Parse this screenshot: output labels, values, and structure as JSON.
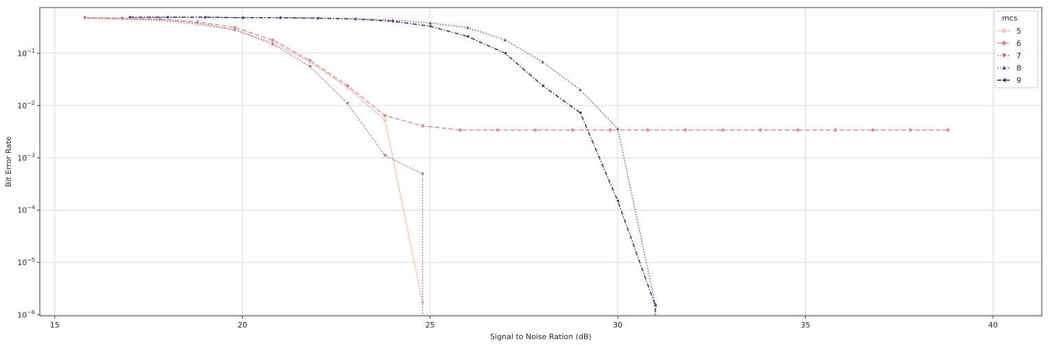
{
  "chart_data": {
    "type": "line",
    "title": "",
    "xlabel": "Signal to Noise Ration (dB)",
    "ylabel": "Bit Error Rate",
    "xlim": [
      14.6,
      41.3
    ],
    "ylim": [
      9.5e-07,
      0.75
    ],
    "yscale": "log",
    "grid": true,
    "x_ticks": [
      15,
      20,
      25,
      30,
      35,
      40
    ],
    "x_tick_labels": [
      "15",
      "20",
      "25",
      "30",
      "35",
      "40"
    ],
    "y_ticks": [
      1e-06,
      1e-05,
      0.0001,
      0.001,
      0.01,
      0.1
    ],
    "y_tick_labels": [
      {
        "base": "10",
        "exp": "−6"
      },
      {
        "base": "10",
        "exp": "−5"
      },
      {
        "base": "10",
        "exp": "−4"
      },
      {
        "base": "10",
        "exp": "−3"
      },
      {
        "base": "10",
        "exp": "−2"
      },
      {
        "base": "10",
        "exp": "−1"
      }
    ],
    "legend": {
      "title": "mcs",
      "placement": "top-right"
    },
    "series": [
      {
        "name": "5",
        "color": "#ebc8b9",
        "marker": "circle",
        "dash": "solid",
        "x": [
          15.8,
          16.8,
          17.8,
          18.8,
          19.8,
          20.8,
          21.8,
          22.8,
          23.8,
          24.8
        ],
        "y": [
          0.46,
          0.45,
          0.42,
          0.36,
          0.28,
          0.16,
          0.068,
          0.022,
          0.0052,
          1.7e-06
        ]
      },
      {
        "name": "6",
        "color": "#d38f9f",
        "marker": "circle",
        "dash": "dashed",
        "x": [
          15.8,
          16.8,
          17.8,
          18.8,
          19.8,
          20.8,
          21.8,
          22.8,
          23.8,
          24.8,
          25.8,
          26.8,
          27.8,
          28.8,
          29.8,
          30.8,
          31.8,
          32.8,
          33.8,
          34.8,
          35.8,
          36.8,
          37.8,
          38.8
        ],
        "y": [
          0.48,
          0.47,
          0.45,
          0.4,
          0.31,
          0.18,
          0.073,
          0.024,
          0.0064,
          0.0041,
          0.0034,
          0.0034,
          0.0034,
          0.0034,
          0.0034,
          0.0034,
          0.0034,
          0.0034,
          0.0034,
          0.0034,
          0.0034,
          0.0034,
          0.0034,
          0.0034
        ]
      },
      {
        "name": "7",
        "color": "#a0597d",
        "marker": "triangle-down",
        "dash": "dotted",
        "x": [
          15.8,
          16.8,
          17.8,
          18.8,
          19.8,
          20.8,
          21.8,
          22.8,
          23.8,
          24.8,
          24.8
        ],
        "y": [
          0.48,
          0.46,
          0.44,
          0.38,
          0.28,
          0.15,
          0.056,
          0.011,
          0.0011,
          0.00049,
          9.5e-07
        ]
      },
      {
        "name": "8",
        "color": "#6a3f7c",
        "marker": "triangle-up",
        "dash": "dotted",
        "x": [
          17.0,
          18.0,
          19.0,
          20.0,
          21.0,
          22.0,
          23.0,
          24.0,
          25.0,
          26.0,
          27.0,
          28.0,
          29.0,
          30.0,
          31.0
        ],
        "y": [
          0.49,
          0.49,
          0.49,
          0.48,
          0.48,
          0.47,
          0.46,
          0.43,
          0.38,
          0.31,
          0.18,
          0.068,
          0.02,
          0.0036,
          1.6e-06
        ]
      },
      {
        "name": "9",
        "color": "#2b1b45",
        "marker": "triangle-left",
        "dash": "dashdot",
        "x": [
          17.0,
          18.0,
          19.0,
          20.0,
          21.0,
          22.0,
          23.0,
          24.0,
          25.0,
          26.0,
          27.0,
          28.0,
          29.0,
          30.0,
          31.0,
          31.0
        ],
        "y": [
          0.49,
          0.49,
          0.49,
          0.48,
          0.48,
          0.47,
          0.45,
          0.41,
          0.33,
          0.21,
          0.1,
          0.024,
          0.0073,
          0.00015,
          1.5e-06,
          9.5e-07
        ]
      }
    ]
  }
}
